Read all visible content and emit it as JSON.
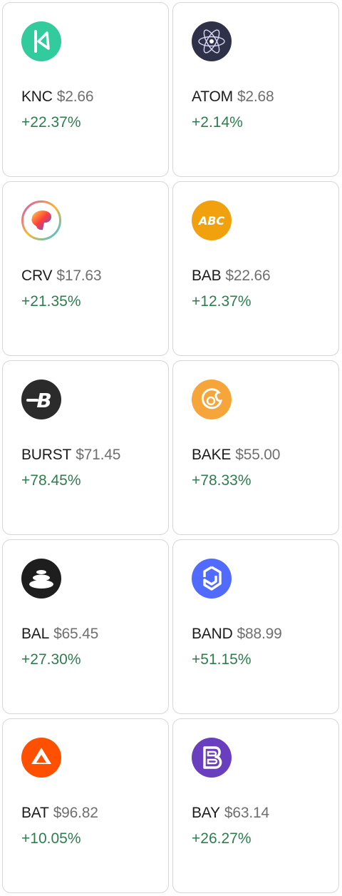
{
  "tiles": [
    {
      "symbol": "KNC",
      "price": "$2.66",
      "change": "+22.37%",
      "icon": "knc-logo-icon",
      "color": "#31cb9e"
    },
    {
      "symbol": "ATOM",
      "price": "$2.68",
      "change": "+2.14%",
      "icon": "atom-logo-icon",
      "color": "#2e3148"
    },
    {
      "symbol": "CRV",
      "price": "$17.63",
      "change": "+21.35%",
      "icon": "crv-logo-icon",
      "color": "#ff4a4a"
    },
    {
      "symbol": "BAB",
      "price": "$22.66",
      "change": "+12.37%",
      "icon": "bab-logo-icon",
      "color": "#f0a10d"
    },
    {
      "symbol": "BURST",
      "price": "$71.45",
      "change": "+78.45%",
      "icon": "burst-logo-icon",
      "color": "#2b2b2b"
    },
    {
      "symbol": "BAKE",
      "price": "$55.00",
      "change": "+78.33%",
      "icon": "bake-logo-icon",
      "color": "#f5a53a"
    },
    {
      "symbol": "BAL",
      "price": "$65.45",
      "change": "+27.30%",
      "icon": "bal-logo-icon",
      "color": "#1e1e1e"
    },
    {
      "symbol": "BAND",
      "price": "$88.99",
      "change": "+51.15%",
      "icon": "band-logo-icon",
      "color": "#516aff"
    },
    {
      "symbol": "BAT",
      "price": "$96.82",
      "change": "+10.05%",
      "icon": "bat-logo-icon",
      "color": "#ff5000"
    },
    {
      "symbol": "BAY",
      "price": "$63.14",
      "change": "+26.27%",
      "icon": "bay-logo-icon",
      "color": "#6a3fbf"
    }
  ],
  "colors": {
    "positive": "#2e7d4f",
    "symbol": "#1c1c1c",
    "price": "#6f6f6f",
    "border": "#d6d6d6"
  }
}
